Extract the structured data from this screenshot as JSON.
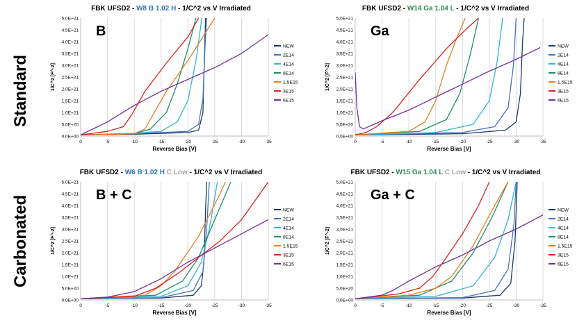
{
  "row_labels": {
    "top": "Standard",
    "bottom": "Carbonated"
  },
  "chart_data": [
    {
      "type": "line",
      "title_parts": {
        "prefix": "FBK UFSD2 - ",
        "sample": "W8 B 1.02 H",
        "sample_color": "#2e75b6",
        "carbon": "",
        "suffix": " - 1/C^2 vs V Irradiated"
      },
      "panel_label": "B",
      "xlabel": "Reverse Bias [V]",
      "ylabel": "1/C^2 [F^-2]",
      "xlim": [
        0,
        -35
      ],
      "ylim": [
        0,
        5e+21
      ],
      "xticks": [
        "0",
        "-5",
        "-10",
        "-15",
        "-20",
        "-25",
        "-30",
        "-35"
      ],
      "yticks": [
        "0,0E+00",
        "5,0E+20",
        "1,0E+21",
        "1,5E+21",
        "2,0E+21",
        "2,5E+21",
        "3,0E+21",
        "3,5E+21",
        "4,0E+21",
        "4,5E+21",
        "5,0E+21"
      ],
      "series": [
        {
          "name": "NEW",
          "color": "#1f3864",
          "x": [
            0,
            -10,
            -20,
            -22,
            -22.8,
            -23.1,
            -23.3
          ],
          "y": [
            0.05,
            0.08,
            0.15,
            0.25,
            1.0,
            3.5,
            5.0
          ]
        },
        {
          "name": "2E14",
          "color": "#4472c4",
          "x": [
            0,
            -10,
            -20,
            -22,
            -22.8,
            -23.2,
            -23.5
          ],
          "y": [
            0.05,
            0.1,
            0.2,
            0.5,
            1.6,
            3.8,
            5.0
          ]
        },
        {
          "name": "4E14",
          "color": "#2eb8d6",
          "x": [
            0,
            -10,
            -15,
            -18,
            -20,
            -21.5,
            -22.6
          ],
          "y": [
            0.05,
            0.12,
            0.2,
            0.6,
            1.5,
            3.2,
            5.0
          ]
        },
        {
          "name": "8E14",
          "color": "#1e8c6e",
          "x": [
            0,
            -10,
            -13,
            -16,
            -18,
            -20,
            -21.5
          ],
          "y": [
            0.05,
            0.1,
            0.3,
            1.0,
            2.2,
            3.7,
            5.0
          ]
        },
        {
          "name": "1.5E15",
          "color": "#e67e22",
          "x": [
            0,
            -10,
            -12,
            -13.5,
            -16,
            -20,
            -25
          ],
          "y": [
            0.05,
            0.1,
            0.3,
            0.9,
            1.9,
            3.2,
            5.0
          ]
        },
        {
          "name": "3E15",
          "color": "#e02020",
          "x": [
            0,
            -5,
            -8,
            -9.5,
            -12,
            -16,
            -20,
            -22
          ],
          "y": [
            0.05,
            0.2,
            0.4,
            0.9,
            1.9,
            3.1,
            4.2,
            5.0
          ]
        },
        {
          "name": "6E15",
          "color": "#7030a0",
          "x": [
            0,
            -5,
            -10,
            -15,
            -20,
            -25,
            -30,
            -35
          ],
          "y": [
            0.05,
            0.6,
            1.3,
            1.9,
            2.4,
            2.9,
            3.5,
            4.3
          ]
        }
      ]
    },
    {
      "type": "line",
      "title_parts": {
        "prefix": "FBK UFSD2 - ",
        "sample": "W14 Ga 1.04 L",
        "sample_color": "#2e8b57",
        "carbon": "",
        "suffix": " - 1/C^2 vs V Irradiated"
      },
      "panel_label": "Ga",
      "xlabel": "Reverse Bias [V]",
      "ylabel": "1/C^2 [F^-2]",
      "xlim": [
        0,
        -35
      ],
      "ylim": [
        0,
        5e+21
      ],
      "xticks": [
        "0",
        "-5",
        "-10",
        "-15",
        "-20",
        "-25",
        "-30",
        "-35"
      ],
      "yticks": [
        "0,0E+00",
        "5,0E+20",
        "1,0E+21",
        "1,5E+21",
        "2,0E+21",
        "2,5E+21",
        "3,0E+21",
        "3,5E+21",
        "4,0E+21",
        "4,5E+21",
        "5,0E+21"
      ],
      "series": [
        {
          "name": "NEW",
          "color": "#1f3864",
          "x": [
            0,
            -20,
            -28,
            -30,
            -30.8,
            -31.2,
            -31.5
          ],
          "y": [
            0.05,
            0.1,
            0.25,
            0.6,
            1.8,
            4.0,
            5.0
          ]
        },
        {
          "name": "2E14",
          "color": "#4472c4",
          "x": [
            0,
            -20,
            -26,
            -28.5,
            -29.5,
            -30
          ],
          "y": [
            0.05,
            0.15,
            0.4,
            1.2,
            3.0,
            5.0
          ]
        },
        {
          "name": "4E14",
          "color": "#2eb8d6",
          "x": [
            0,
            -15,
            -22,
            -25,
            -26.5,
            -27.5
          ],
          "y": [
            0.05,
            0.15,
            0.5,
            1.5,
            3.2,
            5.0
          ]
        },
        {
          "name": "8E14",
          "color": "#1e8c6e",
          "x": [
            0,
            -12,
            -17,
            -19.5,
            -21.5,
            -23
          ],
          "y": [
            0.05,
            0.2,
            0.7,
            1.8,
            3.5,
            5.0
          ]
        },
        {
          "name": "1.5E15",
          "color": "#e67e22",
          "x": [
            0,
            -10,
            -13,
            -15,
            -17,
            -19,
            -20.5
          ],
          "y": [
            0.05,
            0.2,
            0.6,
            1.5,
            3.0,
            4.2,
            5.0
          ]
        },
        {
          "name": "3E15",
          "color": "#e02020",
          "x": [
            0,
            -2,
            -4,
            -7,
            -12,
            -17,
            -21,
            -23
          ],
          "y": [
            0.05,
            0.15,
            0.4,
            1.0,
            2.4,
            3.7,
            4.6,
            5.0
          ]
        },
        {
          "name": "6E15",
          "color": "#7030a0",
          "x": [
            0,
            -0.3,
            -0.8,
            -1.5,
            -5,
            -10,
            -15,
            -20,
            -25,
            -30,
            -34.5
          ],
          "y": [
            2.7,
            1.2,
            0.4,
            0.3,
            0.65,
            1.1,
            1.65,
            2.2,
            2.75,
            3.25,
            3.75
          ]
        }
      ]
    },
    {
      "type": "line",
      "title_parts": {
        "prefix": "FBK UFSD2 - ",
        "sample": "W6 B 1.02 H",
        "sample_color": "#2e75b6",
        "carbon": " C Low",
        "suffix": " - 1/C^2 vs V Irradiated"
      },
      "panel_label": "B + C",
      "xlabel": "Reverse Bias [V]",
      "ylabel": "1/C^2 [F^-2]",
      "xlim": [
        0,
        -35
      ],
      "ylim": [
        0,
        5e+21
      ],
      "xticks": [
        "0",
        "-5",
        "-10",
        "-15",
        "-20",
        "-25",
        "-30",
        "-35"
      ],
      "yticks": [
        "0,0E+00",
        "5,0E+20",
        "1,0E+21",
        "1,5E+21",
        "2,0E+21",
        "2,5E+21",
        "3,0E+21",
        "3,5E+21",
        "4,0E+21",
        "4,5E+21",
        "5,0E+21"
      ],
      "series": [
        {
          "name": "NEW",
          "color": "#1f3864",
          "x": [
            0,
            -15,
            -21,
            -22.5,
            -23,
            -23.3,
            -23.5
          ],
          "y": [
            0.05,
            0.08,
            0.2,
            0.6,
            1.6,
            3.8,
            5.0
          ]
        },
        {
          "name": "2E14",
          "color": "#4472c4",
          "x": [
            0,
            -15,
            -21,
            -22.8,
            -23.5,
            -24
          ],
          "y": [
            0.05,
            0.1,
            0.4,
            1.2,
            3.0,
            5.0
          ]
        },
        {
          "name": "4E14",
          "color": "#2eb8d6",
          "x": [
            0,
            -15,
            -20,
            -22.5,
            -24,
            -25.5
          ],
          "y": [
            0.05,
            0.15,
            0.6,
            1.6,
            3.0,
            5.0
          ]
        },
        {
          "name": "8E14",
          "color": "#1e8c6e",
          "x": [
            0,
            -14,
            -19,
            -22,
            -25,
            -28
          ],
          "y": [
            0.05,
            0.2,
            0.8,
            1.8,
            3.4,
            5.0
          ]
        },
        {
          "name": "1.5E15",
          "color": "#e67e22",
          "x": [
            0,
            -12,
            -15,
            -17.5,
            -22,
            -26,
            -27
          ],
          "y": [
            0.05,
            0.2,
            0.6,
            1.2,
            2.7,
            4.5,
            5.0
          ]
        },
        {
          "name": "3E15",
          "color": "#e02020",
          "x": [
            0,
            -10,
            -14,
            -18,
            -22,
            -26,
            -30,
            -35
          ],
          "y": [
            0.05,
            0.15,
            0.5,
            1.1,
            1.8,
            2.5,
            3.4,
            5.0
          ]
        },
        {
          "name": "6E15",
          "color": "#7030a0",
          "x": [
            0,
            -5,
            -10,
            -15,
            -20,
            -25,
            -30,
            -35
          ],
          "y": [
            0.05,
            0.12,
            0.35,
            0.9,
            1.6,
            2.2,
            2.8,
            3.4
          ]
        }
      ]
    },
    {
      "type": "line",
      "title_parts": {
        "prefix": "FBK UFSD2 - ",
        "sample": "W15 Ga 1.04 L",
        "sample_color": "#2e8b57",
        "carbon": "C Low",
        "suffix": " - 1/C^2 vs V Irradiated"
      },
      "panel_label": "Ga + C",
      "xlabel": "Reverse Bias [V]",
      "ylabel": "1/C^2 [F^-2]",
      "xlim": [
        0,
        -35
      ],
      "ylim": [
        0,
        5e+21
      ],
      "xticks": [
        "0",
        "-5",
        "-10",
        "-15",
        "-20",
        "-25",
        "-30",
        "-35"
      ],
      "yticks": [
        "0,0E+00",
        "5,0E+20",
        "1,0E+21",
        "1,5E+21",
        "2,0E+21",
        "2,5E+21",
        "3,0E+21",
        "3,5E+21",
        "4,0E+21",
        "4,5E+21",
        "5,0E+21"
      ],
      "series": [
        {
          "name": "NEW",
          "color": "#1f3864",
          "x": [
            0,
            -20,
            -27,
            -29,
            -29.8,
            -30.2
          ],
          "y": [
            0.05,
            0.08,
            0.2,
            0.7,
            2.5,
            5.0
          ]
        },
        {
          "name": "2E14",
          "color": "#4472c4",
          "x": [
            0,
            -20,
            -26,
            -28.5,
            -29.6,
            -30
          ],
          "y": [
            0.05,
            0.1,
            0.4,
            1.3,
            3.2,
            5.0
          ]
        },
        {
          "name": "4E14",
          "color": "#2eb8d6",
          "x": [
            0,
            -15,
            -22,
            -26,
            -28.5,
            -30
          ],
          "y": [
            0.05,
            0.15,
            0.6,
            1.8,
            3.4,
            5.0
          ]
        },
        {
          "name": "8E14",
          "color": "#1e8c6e",
          "x": [
            0,
            -12,
            -18,
            -22,
            -25.5,
            -28.5
          ],
          "y": [
            0.05,
            0.2,
            0.8,
            2.0,
            3.5,
            5.0
          ]
        },
        {
          "name": "1.5E15",
          "color": "#e67e22",
          "x": [
            0,
            -10,
            -15,
            -18,
            -22,
            -26,
            -28.5
          ],
          "y": [
            0.05,
            0.2,
            0.5,
            1.0,
            2.3,
            4.0,
            5.0
          ]
        },
        {
          "name": "3E15",
          "color": "#e02020",
          "x": [
            0,
            -8,
            -12,
            -14.5,
            -17,
            -20,
            -23,
            -25
          ],
          "y": [
            0.05,
            0.25,
            0.5,
            1.0,
            1.8,
            2.8,
            4.0,
            5.0
          ]
        },
        {
          "name": "6E15",
          "color": "#7030a0",
          "x": [
            0,
            -5,
            -7,
            -10,
            -15,
            -20,
            -25,
            -30,
            -35
          ],
          "y": [
            0.05,
            0.2,
            0.4,
            0.8,
            1.4,
            1.9,
            2.5,
            3.0,
            3.6
          ]
        }
      ]
    }
  ]
}
